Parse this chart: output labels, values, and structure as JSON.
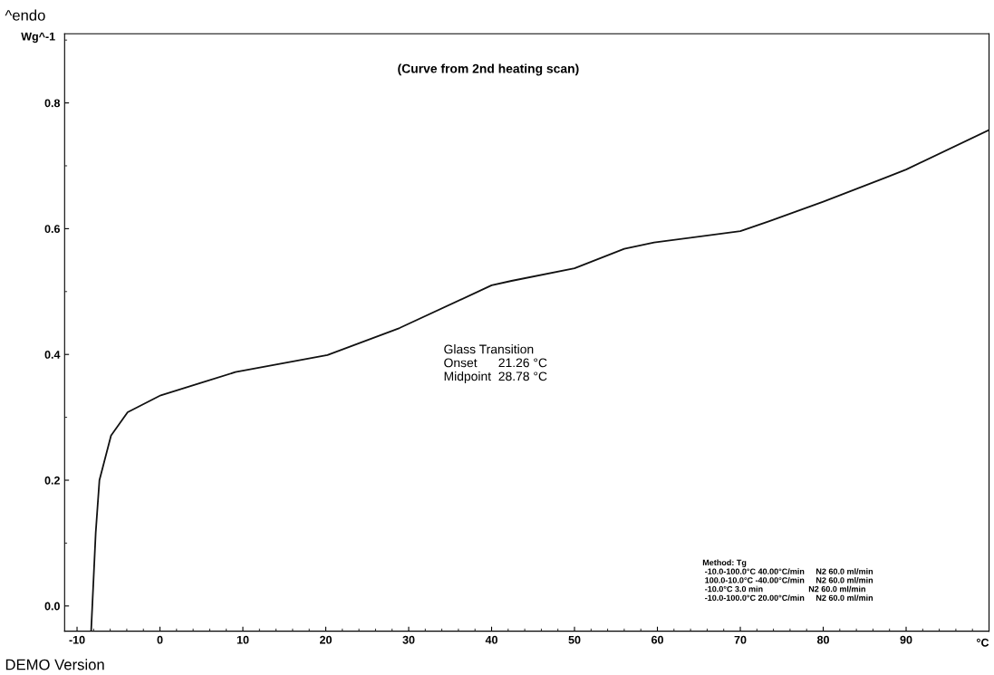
{
  "chart_data": {
    "type": "line",
    "xlabel": "°C",
    "ylabel": "Wg^-1",
    "x": [
      -8.3,
      -7.75,
      -7.3,
      -5.9,
      -3.9,
      0.1,
      5.0,
      9.1,
      20.2,
      28.9,
      40.0,
      42.4,
      50.0,
      56.0,
      59.6,
      70.0,
      73.5,
      80.0,
      87.5,
      90.0,
      100.0
    ],
    "series": [
      {
        "color": "#111111",
        "values": [
          -0.04,
          0.116,
          0.2,
          0.271,
          0.308,
          0.335,
          0.355,
          0.372,
          0.399,
          0.442,
          0.51,
          0.517,
          0.537,
          0.568,
          0.578,
          0.596,
          0.612,
          0.643,
          0.681,
          0.694,
          0.757
        ]
      }
    ],
    "xlim": [
      -11.5,
      100
    ],
    "ylim": [
      -0.04,
      0.91
    ],
    "xticks": [
      -10,
      0,
      10,
      20,
      30,
      40,
      50,
      60,
      70,
      80,
      90
    ],
    "yticks": [
      {
        "value": 0,
        "label": "0.0"
      },
      0.2,
      0.4,
      0.6,
      0.8
    ],
    "line_style": "solid",
    "marker": "none",
    "grid": false,
    "legend": false,
    "annotations": [
      "^endo",
      "(Curve from 2nd heating scan)",
      "Glass Transition\nOnset      21.26 °C\nMidpoint  28.78 °C",
      "Method: Tg\n -10.0-100.0°C 40.00°C/min     N2 60.0 ml/min\n 100.0-10.0°C -40.00°C/min     N2 60.0 ml/min\n -10.0°C 3.0 min                    N2 60.0 ml/min\n -10.0-100.0°C 20.00°C/min     N2 60.0 ml/min",
      "DEMO Version"
    ]
  }
}
